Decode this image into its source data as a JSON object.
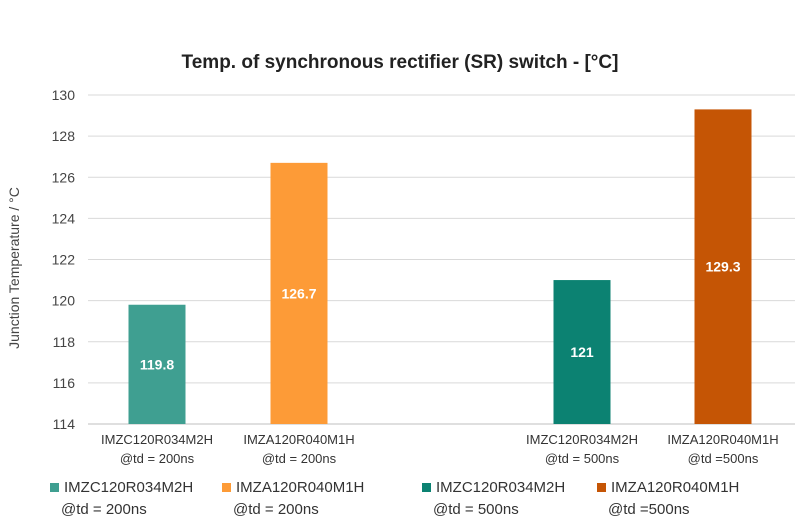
{
  "chart_data": {
    "type": "bar",
    "title": "Temp. of synchronous rectifier (SR) switch - [°C]",
    "ylabel": "Junction Temperature / °C",
    "xlabel": "",
    "ylim": [
      114,
      130
    ],
    "ytick_step": 2,
    "grid": true,
    "legend_position": "bottom",
    "categories": [
      {
        "line1": "IMZC120R034M2H",
        "line2": "@td = 200ns"
      },
      {
        "line1": "IMZA120R040M1H",
        "line2": "@td = 200ns"
      },
      {
        "line1": "IMZC120R034M2H",
        "line2": "@td = 500ns"
      },
      {
        "line1": "IMZA120R040M1H",
        "line2": "@td =500ns"
      }
    ],
    "series": [
      {
        "name_line1": "IMZC120R034M2H",
        "name_line2": "@td = 200ns",
        "color": "#3f9f91",
        "category_index": 0,
        "value": 119.8,
        "label": "119.8"
      },
      {
        "name_line1": "IMZA120R040M1H",
        "name_line2": "@td = 200ns",
        "color": "#fd9b37",
        "category_index": 1,
        "value": 126.7,
        "label": "126.7"
      },
      {
        "name_line1": "IMZC120R034M2H",
        "name_line2": "@td = 500ns",
        "color": "#0c8272",
        "category_index": 2,
        "value": 121,
        "label": "121"
      },
      {
        "name_line1": "IMZA120R040M1H",
        "name_line2": "@td =500ns",
        "color": "#c55505",
        "category_index": 3,
        "value": 129.3,
        "label": "129.3"
      }
    ]
  }
}
